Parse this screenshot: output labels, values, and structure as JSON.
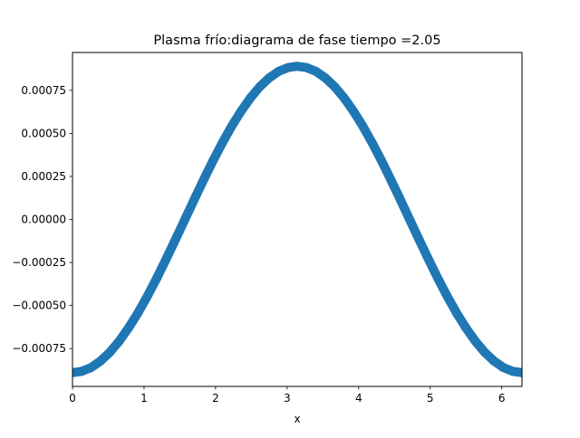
{
  "chart_data": {
    "type": "scatter",
    "title": "Plasma frío:diagrama de fase  tiempo =2.05",
    "xlabel": "x",
    "ylabel": "",
    "xlim": [
      0,
      6.283
    ],
    "ylim": [
      -0.00097,
      0.00097
    ],
    "x_ticks": [
      0,
      1,
      2,
      3,
      4,
      5,
      6
    ],
    "x_tick_labels": [
      "0",
      "1",
      "2",
      "3",
      "4",
      "5",
      "6"
    ],
    "y_ticks": [
      -0.00075,
      -0.0005,
      -0.00025,
      0.0,
      0.00025,
      0.0005,
      0.00075
    ],
    "y_tick_labels": [
      "−0.00075",
      "−0.00050",
      "−0.00025",
      "0.00000",
      "0.00025",
      "0.00050",
      "0.00075"
    ],
    "grid": false,
    "series": [
      {
        "color": "#1f77b4",
        "x": [
          0.0,
          0.1309,
          0.2618,
          0.3927,
          0.5236,
          0.6545,
          0.7854,
          0.9163,
          1.0472,
          1.1781,
          1.309,
          1.4399,
          1.5708,
          1.7017,
          1.8326,
          1.9635,
          2.0944,
          2.2253,
          2.3562,
          2.4871,
          2.618,
          2.7489,
          2.8798,
          3.0107,
          3.1416,
          3.2725,
          3.4034,
          3.5343,
          3.6652,
          3.7961,
          3.927,
          4.0579,
          4.1888,
          4.3197,
          4.4506,
          4.5815,
          4.7124,
          4.8433,
          4.9742,
          5.1051,
          5.236,
          5.3669,
          5.4978,
          5.6287,
          5.7596,
          5.8905,
          6.0214,
          6.1523,
          6.2832
        ],
        "y": [
          -0.00089,
          -0.000882,
          -0.00086,
          -0.000822,
          -0.000771,
          -0.000706,
          -0.000629,
          -0.000542,
          -0.000445,
          -0.000341,
          -0.00023,
          -0.000116,
          0.0,
          0.000116,
          0.00023,
          0.000341,
          0.000445,
          0.000542,
          0.000629,
          0.000706,
          0.000771,
          0.000822,
          0.00086,
          0.000882,
          0.00089,
          0.000882,
          0.00086,
          0.000822,
          0.000771,
          0.000706,
          0.000629,
          0.000542,
          0.000445,
          0.000341,
          0.00023,
          0.000116,
          0.0,
          -0.000116,
          -0.00023,
          -0.000341,
          -0.000445,
          -0.000542,
          -0.000629,
          -0.000706,
          -0.000771,
          -0.000822,
          -0.00086,
          -0.000882,
          -0.00089
        ]
      }
    ]
  }
}
